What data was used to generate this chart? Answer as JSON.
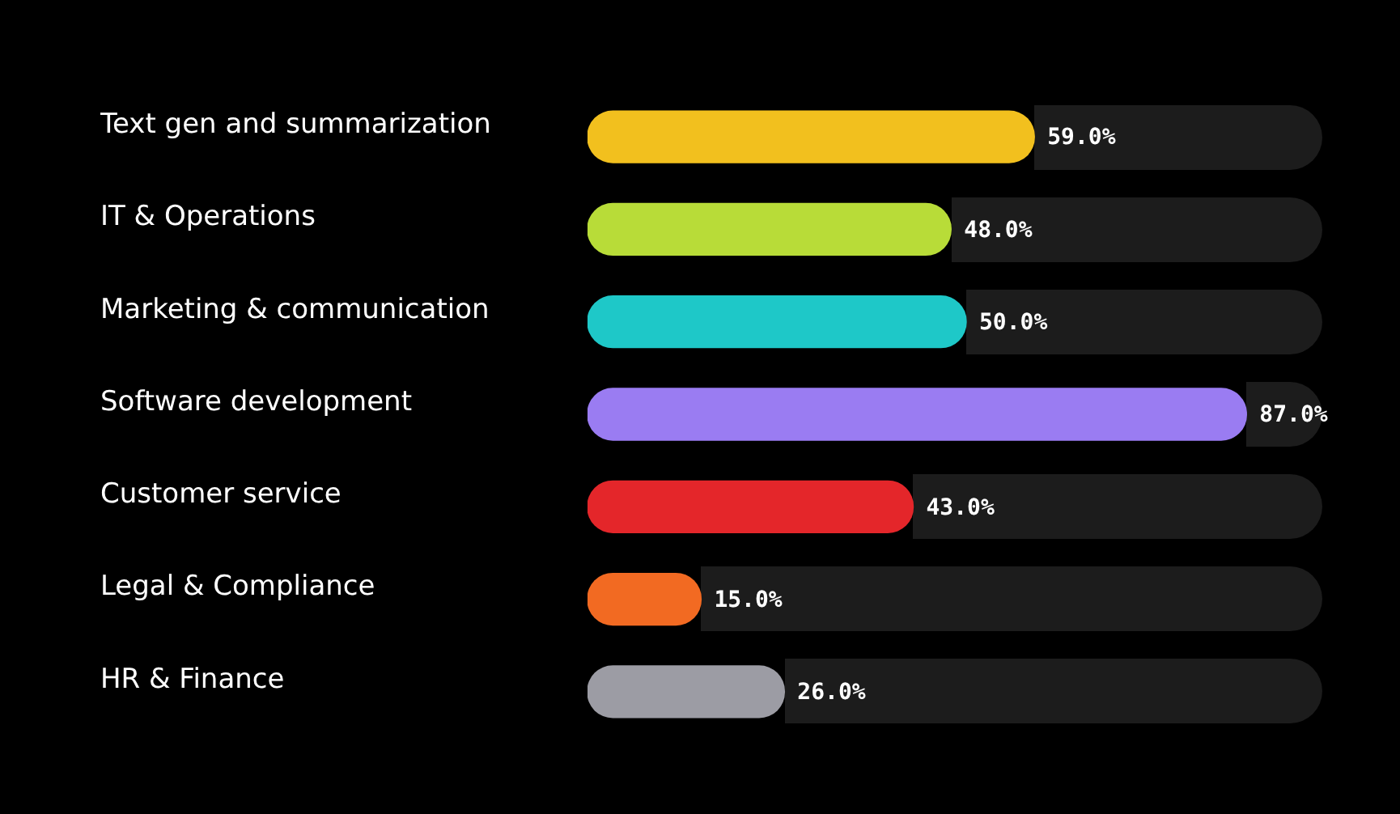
{
  "chart_data": {
    "type": "bar",
    "orientation": "horizontal",
    "categories": [
      "Text gen and summarization",
      "IT & Operations",
      "Marketing & communication",
      "Software development",
      "Customer service",
      "Legal & Compliance",
      "HR & Finance"
    ],
    "values": [
      59.0,
      48.0,
      50.0,
      87.0,
      43.0,
      15.0,
      26.0
    ],
    "colors": [
      "#f2c01e",
      "#b8dc38",
      "#1ec8c8",
      "#9a7cf2",
      "#e4262a",
      "#f26a22",
      "#9c9ca4"
    ],
    "value_labels": [
      "59.0%",
      "48.0%",
      "50.0%",
      "87.0%",
      "43.0%",
      "15.0%",
      "26.0%"
    ],
    "tick_labels": "y",
    "legend": false
  }
}
